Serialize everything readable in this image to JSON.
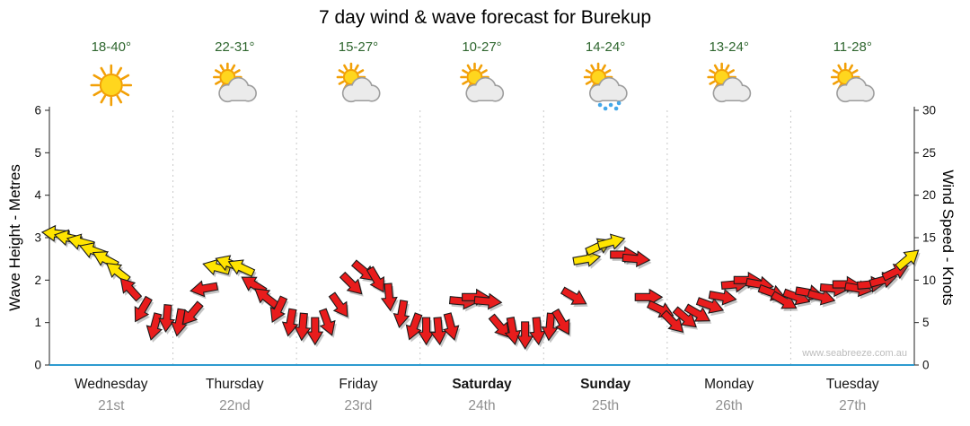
{
  "title": "7 day wind & wave forecast for Burekup",
  "watermark": "www.seabreeze.com.au",
  "style": {
    "temp_color": "#2e662e",
    "date_color": "#8f8f8f",
    "day_color": "#161616"
  },
  "axes": {
    "left_label": "Wave Height - Metres",
    "right_label": "Wind Speed - Knots",
    "left_ticks": [
      0,
      1,
      2,
      3,
      4,
      5,
      6
    ],
    "right_ticks": [
      0,
      5,
      10,
      15,
      20,
      25,
      30
    ],
    "left_range": [
      0,
      6
    ],
    "right_range": [
      0,
      30
    ]
  },
  "days": [
    {
      "name": "Wednesday",
      "date": "21st",
      "temp": "18-40°",
      "icon": "sunny",
      "weekend": false
    },
    {
      "name": "Thursday",
      "date": "22nd",
      "temp": "22-31°",
      "icon": "partly-cloudy",
      "weekend": false
    },
    {
      "name": "Friday",
      "date": "23rd",
      "temp": "15-27°",
      "icon": "partly-cloudy",
      "weekend": false
    },
    {
      "name": "Saturday",
      "date": "24th",
      "temp": "10-27°",
      "icon": "partly-cloudy",
      "weekend": true
    },
    {
      "name": "Sunday",
      "date": "25th",
      "temp": "14-24°",
      "icon": "rain-showers",
      "weekend": true
    },
    {
      "name": "Monday",
      "date": "26th",
      "temp": "13-24°",
      "icon": "partly-cloudy",
      "weekend": false
    },
    {
      "name": "Tuesday",
      "date": "27th",
      "temp": "11-28°",
      "icon": "partly-cloudy",
      "weekend": false
    }
  ],
  "chart_data": {
    "type": "wind-arrows",
    "dir_convention": "degrees clockwise, 0 = arrow pointing right",
    "point_format": [
      "wind_speed_knots",
      "arrow_direction_deg",
      "color y=strong-yellow r=red"
    ],
    "wind_speed_axis": "right",
    "ylim_wave_m": [
      0,
      6
    ],
    "ylim_wind_kn": [
      0,
      30
    ],
    "colors": {
      "strong_arrow": "#ffe400",
      "arrow": "#e81c1c",
      "outline": "#1a1a1a",
      "baseline": "#2d9bd0",
      "grid": "#c8c8c8"
    },
    "series": [
      {
        "day": "Wednesday",
        "points": [
          [
            15.5,
            185,
            "y"
          ],
          [
            15,
            192,
            "y"
          ],
          [
            14.5,
            195,
            "y"
          ],
          [
            13.5,
            200,
            "y"
          ],
          [
            12.5,
            208,
            "y"
          ],
          [
            11,
            218,
            "y"
          ],
          [
            9,
            228,
            "r"
          ],
          [
            6.5,
            120,
            "r"
          ],
          [
            4.5,
            105,
            "r"
          ],
          [
            5.5,
            95,
            "r"
          ]
        ]
      },
      {
        "day": "Thursday",
        "points": [
          [
            5,
            100,
            "r"
          ],
          [
            6,
            130,
            "r"
          ],
          [
            9,
            170,
            "r"
          ],
          [
            11.5,
            195,
            "y"
          ],
          [
            12,
            200,
            "y"
          ],
          [
            11.5,
            205,
            "y"
          ],
          [
            9.5,
            212,
            "r"
          ],
          [
            8,
            218,
            "r"
          ],
          [
            6.5,
            115,
            "r"
          ],
          [
            5,
            100,
            "r"
          ]
        ]
      },
      {
        "day": "Friday",
        "points": [
          [
            4.5,
            95,
            "r"
          ],
          [
            4,
            90,
            "r"
          ],
          [
            5,
            70,
            "r"
          ],
          [
            7,
            55,
            "r"
          ],
          [
            9.5,
            45,
            "r"
          ],
          [
            11,
            40,
            "r"
          ],
          [
            10,
            60,
            "r"
          ],
          [
            8,
            85,
            "r"
          ],
          [
            6,
            100,
            "r"
          ],
          [
            4.5,
            110,
            "r"
          ]
        ]
      },
      {
        "day": "Saturday",
        "points": [
          [
            4,
            90,
            "r"
          ],
          [
            4,
            85,
            "r"
          ],
          [
            4.5,
            75,
            "r"
          ],
          [
            7.5,
            5,
            "r"
          ],
          [
            8,
            0,
            "r"
          ],
          [
            7.5,
            5,
            "r"
          ],
          [
            4.5,
            50,
            "r"
          ],
          [
            4,
            80,
            "r"
          ],
          [
            3.5,
            90,
            "r"
          ],
          [
            4,
            85,
            "r"
          ]
        ]
      },
      {
        "day": "Sunday",
        "points": [
          [
            4.5,
            95,
            "r"
          ],
          [
            5,
            60,
            "r"
          ],
          [
            8,
            30,
            "r"
          ],
          [
            12.5,
            350,
            "y"
          ],
          [
            14,
            335,
            "y"
          ],
          [
            14.5,
            345,
            "y"
          ],
          [
            13,
            0,
            "r"
          ],
          [
            12.5,
            5,
            "r"
          ],
          [
            8,
            0,
            "r"
          ],
          [
            6.5,
            25,
            "r"
          ]
        ]
      },
      {
        "day": "Monday",
        "points": [
          [
            5,
            45,
            "r"
          ],
          [
            5.5,
            40,
            "r"
          ],
          [
            6,
            30,
            "r"
          ],
          [
            7,
            20,
            "r"
          ],
          [
            8,
            10,
            "r"
          ],
          [
            9.5,
            355,
            "r"
          ],
          [
            10,
            0,
            "r"
          ],
          [
            9.5,
            10,
            "r"
          ],
          [
            8.5,
            20,
            "r"
          ],
          [
            7.5,
            30,
            "r"
          ]
        ]
      },
      {
        "day": "Tuesday",
        "points": [
          [
            8,
            20,
            "r"
          ],
          [
            8.5,
            10,
            "r"
          ],
          [
            8,
            15,
            "r"
          ],
          [
            9,
            5,
            "r"
          ],
          [
            9.5,
            0,
            "r"
          ],
          [
            9,
            10,
            "r"
          ],
          [
            9.5,
            355,
            "r"
          ],
          [
            10,
            345,
            "r"
          ],
          [
            11,
            335,
            "r"
          ],
          [
            12.5,
            320,
            "y"
          ]
        ]
      }
    ]
  }
}
